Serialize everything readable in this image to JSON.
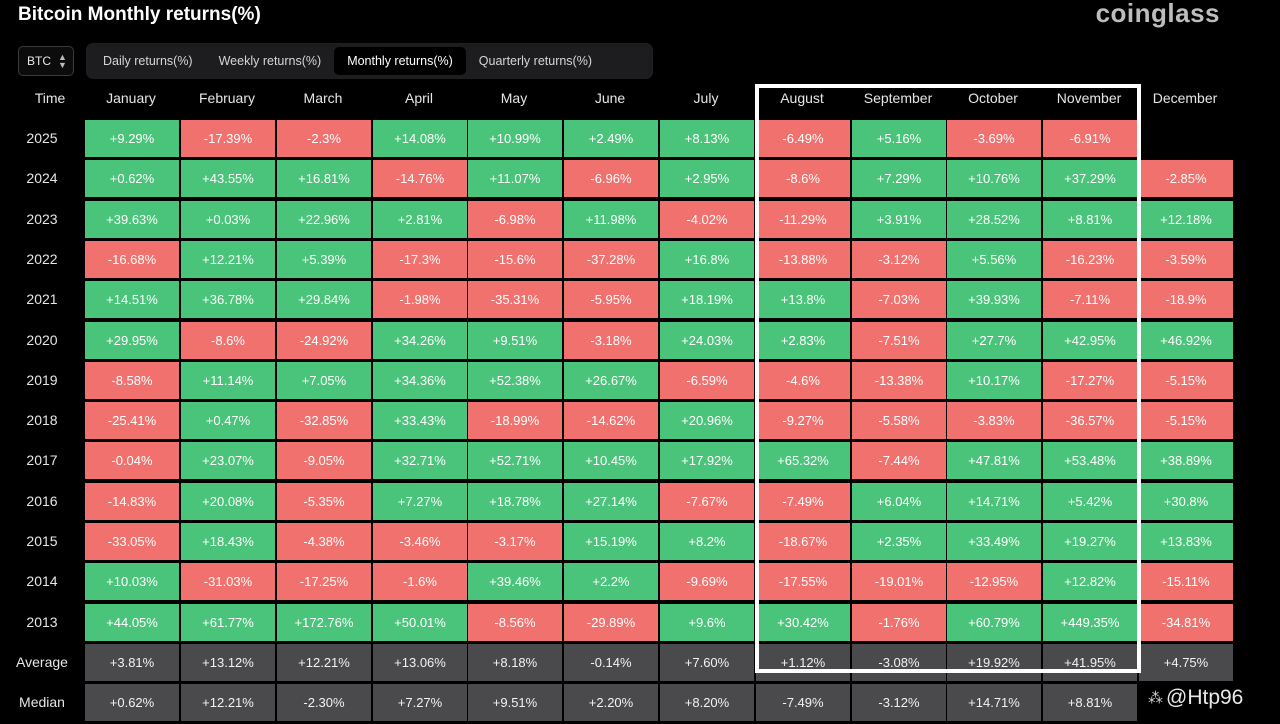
{
  "header": {
    "title": "Bitcoin Monthly returns(%)",
    "brand": "coinglass"
  },
  "controls": {
    "asset": "BTC",
    "tabs": [
      {
        "label": "Daily returns(%)",
        "active": false
      },
      {
        "label": "Weekly returns(%)",
        "active": false
      },
      {
        "label": "Monthly returns(%)",
        "active": true
      },
      {
        "label": "Quarterly returns(%)",
        "active": false
      }
    ]
  },
  "watermark": "@Htp96",
  "colors": {
    "positive": "#4ac47a",
    "negative": "#f0716d",
    "stat": "#4a4a4c",
    "highlight": "#ffffff"
  },
  "chart_data": {
    "type": "table",
    "corner_label": "Time",
    "columns": [
      "January",
      "February",
      "March",
      "April",
      "May",
      "June",
      "July",
      "August",
      "September",
      "October",
      "November",
      "December"
    ],
    "highlighted_columns": [
      "August",
      "September",
      "October",
      "November"
    ],
    "rows": [
      {
        "label": "2025",
        "values": [
          "+9.29%",
          "-17.39%",
          "-2.3%",
          "+14.08%",
          "+10.99%",
          "+2.49%",
          "+8.13%",
          "-6.49%",
          "+5.16%",
          "-3.69%",
          "-6.91%",
          ""
        ]
      },
      {
        "label": "2024",
        "values": [
          "+0.62%",
          "+43.55%",
          "+16.81%",
          "-14.76%",
          "+11.07%",
          "-6.96%",
          "+2.95%",
          "-8.6%",
          "+7.29%",
          "+10.76%",
          "+37.29%",
          "-2.85%"
        ]
      },
      {
        "label": "2023",
        "values": [
          "+39.63%",
          "+0.03%",
          "+22.96%",
          "+2.81%",
          "-6.98%",
          "+11.98%",
          "-4.02%",
          "-11.29%",
          "+3.91%",
          "+28.52%",
          "+8.81%",
          "+12.18%"
        ]
      },
      {
        "label": "2022",
        "values": [
          "-16.68%",
          "+12.21%",
          "+5.39%",
          "-17.3%",
          "-15.6%",
          "-37.28%",
          "+16.8%",
          "-13.88%",
          "-3.12%",
          "+5.56%",
          "-16.23%",
          "-3.59%"
        ]
      },
      {
        "label": "2021",
        "values": [
          "+14.51%",
          "+36.78%",
          "+29.84%",
          "-1.98%",
          "-35.31%",
          "-5.95%",
          "+18.19%",
          "+13.8%",
          "-7.03%",
          "+39.93%",
          "-7.11%",
          "-18.9%"
        ]
      },
      {
        "label": "2020",
        "values": [
          "+29.95%",
          "-8.6%",
          "-24.92%",
          "+34.26%",
          "+9.51%",
          "-3.18%",
          "+24.03%",
          "+2.83%",
          "-7.51%",
          "+27.7%",
          "+42.95%",
          "+46.92%"
        ]
      },
      {
        "label": "2019",
        "values": [
          "-8.58%",
          "+11.14%",
          "+7.05%",
          "+34.36%",
          "+52.38%",
          "+26.67%",
          "-6.59%",
          "-4.6%",
          "-13.38%",
          "+10.17%",
          "-17.27%",
          "-5.15%"
        ]
      },
      {
        "label": "2018",
        "values": [
          "-25.41%",
          "+0.47%",
          "-32.85%",
          "+33.43%",
          "-18.99%",
          "-14.62%",
          "+20.96%",
          "-9.27%",
          "-5.58%",
          "-3.83%",
          "-36.57%",
          "-5.15%"
        ]
      },
      {
        "label": "2017",
        "values": [
          "-0.04%",
          "+23.07%",
          "-9.05%",
          "+32.71%",
          "+52.71%",
          "+10.45%",
          "+17.92%",
          "+65.32%",
          "-7.44%",
          "+47.81%",
          "+53.48%",
          "+38.89%"
        ]
      },
      {
        "label": "2016",
        "values": [
          "-14.83%",
          "+20.08%",
          "-5.35%",
          "+7.27%",
          "+18.78%",
          "+27.14%",
          "-7.67%",
          "-7.49%",
          "+6.04%",
          "+14.71%",
          "+5.42%",
          "+30.8%"
        ]
      },
      {
        "label": "2015",
        "values": [
          "-33.05%",
          "+18.43%",
          "-4.38%",
          "-3.46%",
          "-3.17%",
          "+15.19%",
          "+8.2%",
          "-18.67%",
          "+2.35%",
          "+33.49%",
          "+19.27%",
          "+13.83%"
        ]
      },
      {
        "label": "2014",
        "values": [
          "+10.03%",
          "-31.03%",
          "-17.25%",
          "-1.6%",
          "+39.46%",
          "+2.2%",
          "-9.69%",
          "-17.55%",
          "-19.01%",
          "-12.95%",
          "+12.82%",
          "-15.11%"
        ]
      },
      {
        "label": "2013",
        "values": [
          "+44.05%",
          "+61.77%",
          "+172.76%",
          "+50.01%",
          "-8.56%",
          "-29.89%",
          "+9.6%",
          "+30.42%",
          "-1.76%",
          "+60.79%",
          "+449.35%",
          "-34.81%"
        ]
      }
    ],
    "summary_rows": [
      {
        "label": "Average",
        "values": [
          "+3.81%",
          "+13.12%",
          "+12.21%",
          "+13.06%",
          "+8.18%",
          "-0.14%",
          "+7.60%",
          "+1.12%",
          "-3.08%",
          "+19.92%",
          "+41.95%",
          "+4.75%"
        ]
      },
      {
        "label": "Median",
        "values": [
          "+0.62%",
          "+12.21%",
          "-2.30%",
          "+7.27%",
          "+9.51%",
          "+2.20%",
          "+8.20%",
          "-7.49%",
          "-3.12%",
          "+14.71%",
          "+8.81%",
          ""
        ]
      }
    ]
  }
}
